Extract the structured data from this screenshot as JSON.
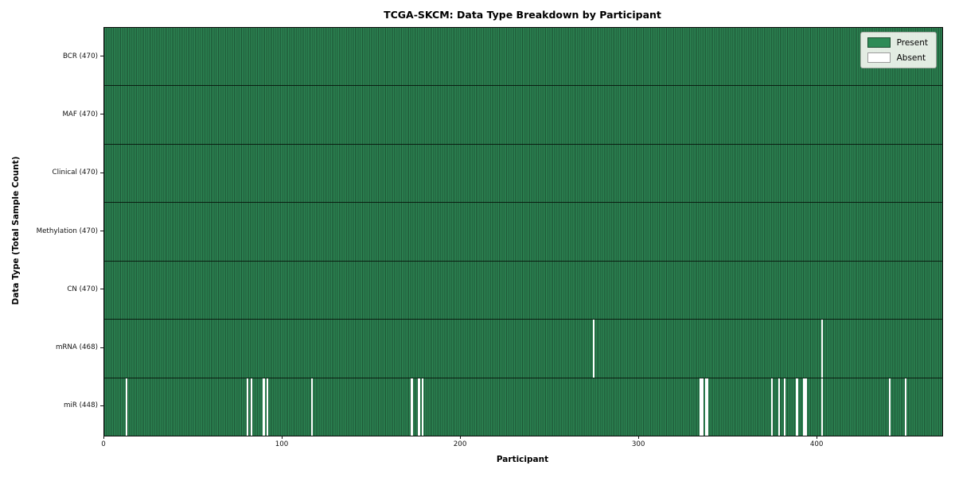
{
  "chart_data": {
    "type": "heatmap",
    "title": "TCGA-SKCM: Data Type Breakdown by Participant",
    "xlabel": "Participant",
    "ylabel": "Data Type (Total Sample Count)",
    "n_participants": 470,
    "x_ticks": [
      0,
      100,
      200,
      300,
      400
    ],
    "grid": false,
    "legend_position": "upper right",
    "colors": {
      "present": "#2e8b57",
      "present_edge": "#1b4d30",
      "absent": "#ffffff",
      "row_separator": "#0a140c",
      "legend_background": "#f3f6f0"
    },
    "legend": [
      {
        "label": "Present",
        "color": "#2e8b57"
      },
      {
        "label": "Absent",
        "color": "#ffffff"
      }
    ],
    "rows": [
      {
        "label": "BCR (470)",
        "total": 470,
        "absent_participants": []
      },
      {
        "label": "MAF (470)",
        "total": 470,
        "absent_participants": []
      },
      {
        "label": "Clinical (470)",
        "total": 470,
        "absent_participants": []
      },
      {
        "label": "Methylation (470)",
        "total": 470,
        "absent_participants": []
      },
      {
        "label": "CN (470)",
        "total": 470,
        "absent_participants": []
      },
      {
        "label": "mRNA (468)",
        "total": 468,
        "absent_participants": [
          274,
          402
        ]
      },
      {
        "label": "miR (448)",
        "total": 448,
        "absent_participants": [
          12,
          80,
          82,
          89,
          91,
          116,
          172,
          176,
          178,
          334,
          335,
          337,
          338,
          374,
          378,
          381,
          388,
          392,
          393,
          402,
          440,
          449
        ]
      }
    ]
  }
}
